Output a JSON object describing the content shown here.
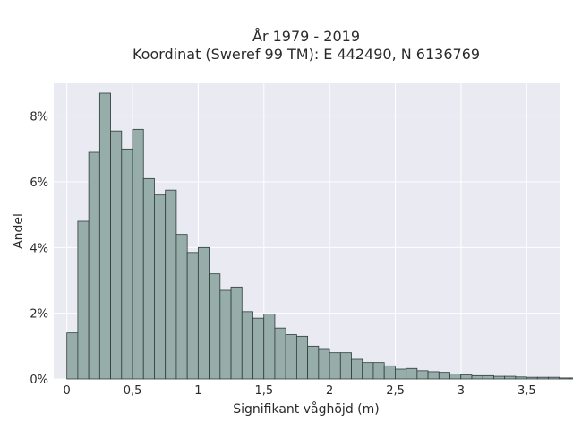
{
  "chart_data": {
    "type": "bar",
    "title_lines": [
      "År 1979 - 2019",
      "Koordinat (Sweref 99 TM): E 442490, N 6136769"
    ],
    "xlabel": "Signifikant våghöjd (m)",
    "ylabel": "Andel",
    "xlim": [
      -0.1,
      3.75
    ],
    "ylim": [
      0,
      9.0
    ],
    "x_ticks": [
      0,
      0.5,
      1,
      1.5,
      2,
      2.5,
      3,
      3.5
    ],
    "x_tick_labels": [
      "0",
      "0,5",
      "1",
      "1,5",
      "2",
      "2,5",
      "3",
      "3,5"
    ],
    "y_ticks": [
      0,
      2,
      4,
      6,
      8
    ],
    "y_tick_labels": [
      "0%",
      "2%",
      "4%",
      "6%",
      "8%"
    ],
    "bin_start": 0,
    "bin_width": 0.0833,
    "values": [
      1.4,
      4.8,
      6.9,
      8.7,
      7.55,
      7.0,
      7.6,
      6.1,
      5.6,
      5.75,
      4.4,
      3.85,
      4.0,
      3.2,
      2.7,
      2.8,
      2.05,
      1.85,
      1.98,
      1.55,
      1.35,
      1.3,
      1.0,
      0.9,
      0.8,
      0.8,
      0.6,
      0.5,
      0.5,
      0.4,
      0.3,
      0.32,
      0.25,
      0.22,
      0.2,
      0.15,
      0.12,
      0.1,
      0.1,
      0.08,
      0.08,
      0.06,
      0.05,
      0.05,
      0.05,
      0.03,
      0.03,
      0.03,
      0.02,
      0.02,
      0.01,
      0.01,
      0.01,
      0.01
    ],
    "grid": true,
    "bar_color": "#97adaa",
    "bar_edge_color": "#2f3b3a",
    "plot_background": "#eaeaf2",
    "grid_color": "#ffffff"
  }
}
